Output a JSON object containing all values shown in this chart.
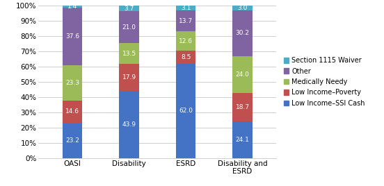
{
  "categories": [
    "OASI",
    "Disability",
    "ESRD",
    "Disability and\nESRD"
  ],
  "series": [
    {
      "name": "Low Income–SSI Cash",
      "values": [
        23.2,
        43.9,
        62.0,
        24.1
      ],
      "color": "#4472C4"
    },
    {
      "name": "Low Income–Poverty",
      "values": [
        14.6,
        17.9,
        8.5,
        18.7
      ],
      "color": "#C0504D"
    },
    {
      "name": "Medically Needy",
      "values": [
        23.3,
        13.5,
        12.6,
        24.0
      ],
      "color": "#9BBB59"
    },
    {
      "name": "Other",
      "values": [
        37.6,
        21.0,
        13.7,
        30.2
      ],
      "color": "#8064A2"
    },
    {
      "name": "Section 1115 Waiver",
      "values": [
        1.4,
        3.7,
        3.1,
        3.0
      ],
      "color": "#4BACC6"
    }
  ],
  "ylim": [
    0,
    100
  ],
  "yticks": [
    0,
    10,
    20,
    30,
    40,
    50,
    60,
    70,
    80,
    90,
    100
  ],
  "ytick_labels": [
    "0%",
    "10%",
    "20%",
    "30%",
    "40%",
    "50%",
    "60%",
    "70%",
    "80%",
    "90%",
    "100%"
  ],
  "bar_width": 0.35,
  "legend_fontsize": 7,
  "tick_fontsize": 7.5,
  "label_fontsize": 6.5,
  "background_color": "#ffffff",
  "grid_color": "#c8c8c8",
  "figsize": [
    5.52,
    2.68
  ],
  "dpi": 100
}
